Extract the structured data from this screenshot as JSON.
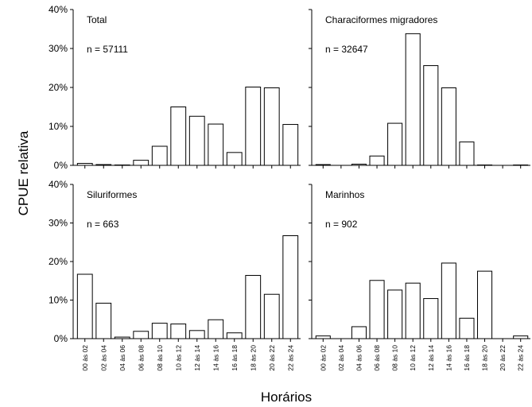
{
  "figure": {
    "ylabel": "CPUE relativa",
    "xlabel": "Horários"
  },
  "chart_data": [
    {
      "type": "bar",
      "title": "Total",
      "annotation": "n = 57111",
      "categories": [
        "00 às 02",
        "02 às 04",
        "04 às 06",
        "06 às 08",
        "08 às 10",
        "10 às 12",
        "12 às 14",
        "14 às 16",
        "16 às 18",
        "18 às 20",
        "20 às 22",
        "22 às 24"
      ],
      "values": [
        0.5,
        0.2,
        0.1,
        1.3,
        4.9,
        15.0,
        12.6,
        10.6,
        3.3,
        20.1,
        19.9,
        10.5
      ],
      "ylim": [
        0,
        40
      ],
      "yticks": [
        "0%",
        "10%",
        "20%",
        "30%",
        "40%"
      ]
    },
    {
      "type": "bar",
      "title": "Characiformes migradores",
      "annotation": "n = 32647",
      "categories": [
        "00 às 02",
        "02 às 04",
        "04 às 06",
        "06 às 08",
        "08 às 10",
        "10 às 12",
        "12 às 14",
        "14 às 16",
        "16 às 18",
        "18 às 20",
        "20 às 22",
        "22 às 24"
      ],
      "values": [
        0.2,
        0.0,
        0.3,
        2.4,
        10.8,
        33.8,
        25.6,
        19.9,
        6.0,
        0.1,
        0.0,
        0.1
      ],
      "ylim": [
        0,
        40
      ],
      "yticks": []
    },
    {
      "type": "bar",
      "title": "Siluriformes",
      "annotation": "n = 663",
      "categories": [
        "00 às 02",
        "02 às 04",
        "04 às 06",
        "06 às 08",
        "08 às 10",
        "10 às 12",
        "12 às 14",
        "14 às 16",
        "16 às 18",
        "18 às 20",
        "20 às 22",
        "22 às 24"
      ],
      "values": [
        16.7,
        9.2,
        0.4,
        1.9,
        4.0,
        3.8,
        2.1,
        4.9,
        1.5,
        16.4,
        11.5,
        26.7
      ],
      "ylim": [
        0,
        40
      ],
      "yticks": [
        "0%",
        "10%",
        "20%",
        "30%",
        "40%"
      ]
    },
    {
      "type": "bar",
      "title": "Marinhos",
      "annotation": "n = 902",
      "categories": [
        "00 às 02",
        "02 às 04",
        "04 às 06",
        "06 às 08",
        "08 às 10",
        "10 às 12",
        "12 às 14",
        "14 às 16",
        "16 às 18",
        "18 às 20",
        "20 às 22",
        "22 às 24"
      ],
      "values": [
        0.7,
        0.0,
        3.1,
        15.1,
        12.6,
        14.4,
        10.4,
        19.6,
        5.3,
        17.5,
        0.0,
        0.7
      ],
      "ylim": [
        0,
        40
      ],
      "yticks": []
    }
  ]
}
